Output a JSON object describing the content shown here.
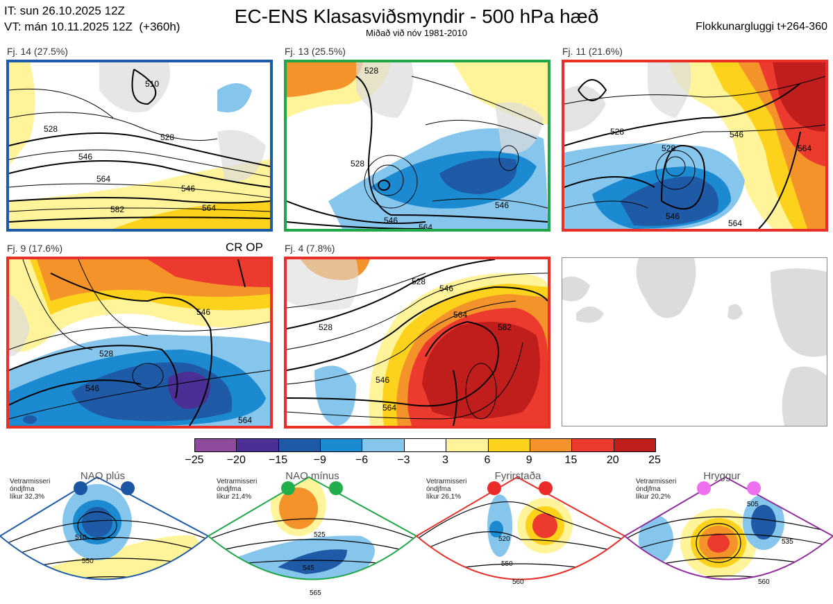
{
  "header": {
    "init_time": "IT: sun 26.10.2025 12Z",
    "valid_time": "VT: mán 10.11.2025 12Z  (+360h)",
    "title": "EC-ENS Klasasviðsmyndir - 500 hPa hæð",
    "subtitle": "Miðað við nóv 1981-2010",
    "window": "Flokkunargluggi t+264-360"
  },
  "panels": [
    {
      "label": "Fj. 14 (27.5%)",
      "border": "#1f5aa6",
      "contours": [
        "510",
        "528",
        "528",
        "546",
        "546",
        "564",
        "564",
        "582"
      ]
    },
    {
      "label": "Fj. 13 (25.5%)",
      "border": "#22a64a",
      "contours": [
        "528",
        "528",
        "546",
        "546",
        "564"
      ]
    },
    {
      "label": "Fj. 11 (21.6%)",
      "border": "#e8302b",
      "contours": [
        "528",
        "528",
        "546",
        "546",
        "564",
        "564"
      ]
    },
    {
      "label": "Fj. 9 (17.6%)",
      "border": "#e8302b",
      "extra": "CR OP",
      "contours": [
        "528",
        "546",
        "546",
        "564"
      ]
    },
    {
      "label": "Fj. 4 (7.8%)",
      "border": "#e8302b",
      "contours": [
        "528",
        "528",
        "546",
        "546",
        "564",
        "564",
        "582"
      ]
    }
  ],
  "colorbar": {
    "ticks": [
      "−25",
      "−20",
      "−15",
      "−9",
      "−6",
      "−3",
      "3",
      "6",
      "9",
      "15",
      "20",
      "25"
    ],
    "colors": [
      "#8e4b9e",
      "#4b2f94",
      "#1f5aa6",
      "#1b8ad0",
      "#86c6ec",
      "#ffffff",
      "#fff49a",
      "#fcd21c",
      "#f5932b",
      "#ec3a2e",
      "#c01d1d"
    ]
  },
  "regimes": [
    {
      "name": "NAO plús",
      "season": "Vetrarmisseri",
      "index": "óndjfma",
      "prob": "líkur 32,3%",
      "color": "#1f5aa6",
      "dot": "#1a56a4",
      "labels": [
        "510",
        "550"
      ]
    },
    {
      "name": "NAO mínus",
      "season": "Vetrarmisseri",
      "index": "óndjfma",
      "prob": "líkur 21,4%",
      "color": "#22a64a",
      "dot": "#22ae4a",
      "labels": [
        "525",
        "545",
        "565"
      ]
    },
    {
      "name": "Fyrirstaða",
      "season": "Vetrarmisseri",
      "index": "óndjfma",
      "prob": "líkur 26,1%",
      "color": "#e8302b",
      "dot": "#ec2a2a",
      "labels": [
        "520",
        "550",
        "560"
      ]
    },
    {
      "name": "Hryggur",
      "season": "Vetrarmisseri",
      "index": "óndjfma",
      "prob": "líkur 20,2%",
      "color": "#8e2f9a",
      "dot": "#ee6ef0",
      "labels": [
        "505",
        "535",
        "560"
      ]
    }
  ]
}
